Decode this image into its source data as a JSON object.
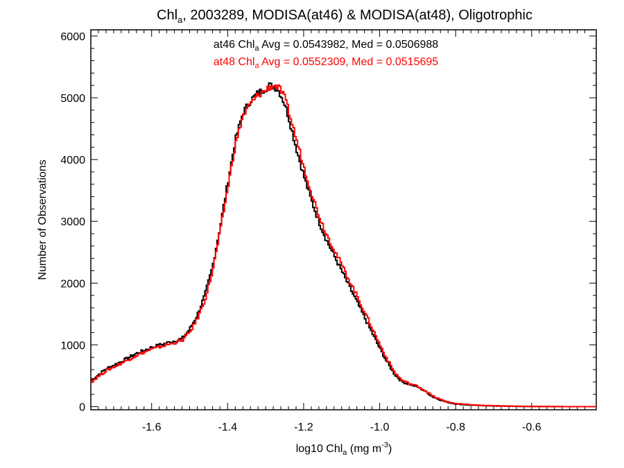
{
  "chart_data": {
    "type": "line",
    "title": {
      "pre": "Chl",
      "sub": "a",
      "post": ", 2003289, MODISA(at46) & MODISA(at48), Oligotrophic"
    },
    "xlabel": {
      "pre": "log10 Chl",
      "sub": "a",
      "mid": " (mg m",
      "sup": "-3",
      "post": ")"
    },
    "ylabel": "Number of Observations",
    "xlim": [
      -1.76,
      -0.43
    ],
    "ylim": [
      -50,
      6100
    ],
    "xticks": [
      -1.6,
      -1.4,
      -1.2,
      -1.0,
      -0.8,
      -0.6
    ],
    "xtick_labels": [
      "-1.6",
      "-1.4",
      "-1.2",
      "-1.0",
      "-0.8",
      "-0.6"
    ],
    "yticks": [
      0,
      1000,
      2000,
      3000,
      4000,
      5000,
      6000
    ],
    "ytick_labels": [
      "0",
      "1000",
      "2000",
      "3000",
      "4000",
      "5000",
      "6000"
    ],
    "annotations": [
      {
        "pre": "at46 Chl",
        "sub": "a",
        "post": " Avg = 0.0543982, Med = 0.0506988",
        "color": "#000000"
      },
      {
        "pre": "at48 Chl",
        "sub": "a",
        "post": " Avg = 0.0552309, Med = 0.0515695",
        "color": "#ff0000"
      }
    ],
    "series": [
      {
        "color": "#000000",
        "x": [
          -1.76,
          -1.72,
          -1.68,
          -1.64,
          -1.6,
          -1.56,
          -1.52,
          -1.5,
          -1.48,
          -1.46,
          -1.44,
          -1.42,
          -1.4,
          -1.38,
          -1.36,
          -1.34,
          -1.32,
          -1.3,
          -1.29,
          -1.28,
          -1.27,
          -1.26,
          -1.25,
          -1.24,
          -1.22,
          -1.2,
          -1.18,
          -1.16,
          -1.14,
          -1.12,
          -1.1,
          -1.08,
          -1.06,
          -1.04,
          -1.02,
          -1.0,
          -0.98,
          -0.96,
          -0.94,
          -0.92,
          -0.9,
          -0.88,
          -0.86,
          -0.84,
          -0.82,
          -0.8,
          -0.76,
          -0.72,
          -0.68,
          -0.64,
          -0.6,
          -0.56,
          -0.52,
          -0.48,
          -0.44
        ],
        "y": [
          420,
          610,
          730,
          860,
          960,
          1030,
          1100,
          1250,
          1480,
          1800,
          2250,
          2900,
          3600,
          4300,
          4750,
          4950,
          5080,
          5150,
          5200,
          5180,
          5150,
          5050,
          4900,
          4700,
          4200,
          3750,
          3350,
          3000,
          2700,
          2450,
          2200,
          1950,
          1700,
          1450,
          1200,
          950,
          720,
          520,
          400,
          360,
          320,
          250,
          160,
          110,
          70,
          45,
          25,
          15,
          10,
          5,
          3,
          2,
          1,
          0,
          0
        ]
      },
      {
        "color": "#ff0000",
        "x": [
          -1.76,
          -1.72,
          -1.68,
          -1.64,
          -1.6,
          -1.56,
          -1.52,
          -1.5,
          -1.48,
          -1.46,
          -1.44,
          -1.42,
          -1.4,
          -1.38,
          -1.36,
          -1.34,
          -1.32,
          -1.3,
          -1.29,
          -1.28,
          -1.27,
          -1.26,
          -1.25,
          -1.24,
          -1.22,
          -1.2,
          -1.18,
          -1.16,
          -1.14,
          -1.12,
          -1.1,
          -1.08,
          -1.06,
          -1.04,
          -1.02,
          -1.0,
          -0.98,
          -0.96,
          -0.94,
          -0.92,
          -0.9,
          -0.88,
          -0.86,
          -0.84,
          -0.82,
          -0.8,
          -0.76,
          -0.72,
          -0.68,
          -0.64,
          -0.6,
          -0.56,
          -0.52,
          -0.48,
          -0.44
        ],
        "y": [
          400,
          580,
          700,
          830,
          930,
          1000,
          1070,
          1200,
          1420,
          1720,
          2180,
          2820,
          3520,
          4230,
          4700,
          4900,
          5040,
          5120,
          5170,
          5200,
          5180,
          5120,
          5000,
          4800,
          4350,
          3900,
          3480,
          3100,
          2800,
          2550,
          2300,
          2050,
          1800,
          1540,
          1280,
          1010,
          770,
          550,
          420,
          370,
          330,
          260,
          170,
          115,
          75,
          50,
          30,
          18,
          12,
          7,
          4,
          2,
          1,
          0,
          0
        ]
      }
    ]
  }
}
